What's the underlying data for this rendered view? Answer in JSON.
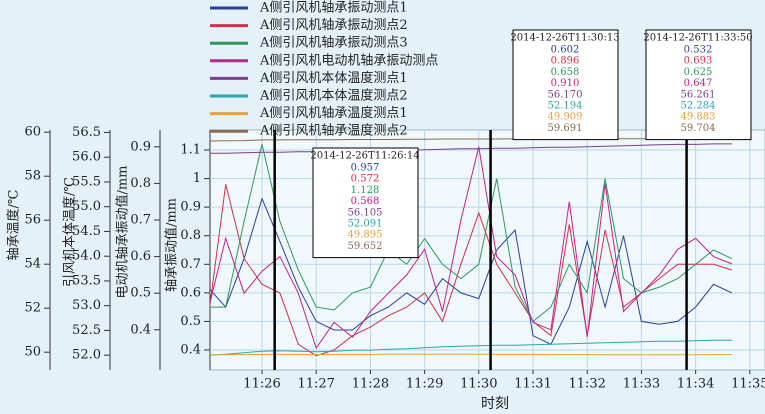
{
  "chart_data": {
    "type": "line",
    "x_label": "时刻",
    "x": [
      685.0,
      685.33,
      685.67,
      686.0,
      686.33,
      686.67,
      687.0,
      687.33,
      687.67,
      688.0,
      688.33,
      688.67,
      689.0,
      689.33,
      689.67,
      690.0,
      690.33,
      690.67,
      691.0,
      691.33,
      691.67,
      692.0,
      692.33,
      692.67,
      693.0,
      693.33,
      693.67,
      694.0,
      694.33,
      694.67
    ],
    "xlim": [
      685.04,
      695.28
    ],
    "xticks": [
      {
        "value": 686,
        "label": "11:26"
      },
      {
        "value": 687,
        "label": "11:27"
      },
      {
        "value": 688,
        "label": "11:28"
      },
      {
        "value": 689,
        "label": "11:29"
      },
      {
        "value": 690,
        "label": "11:30"
      },
      {
        "value": 691,
        "label": "11:31"
      },
      {
        "value": 692,
        "label": "11:32"
      },
      {
        "value": 693,
        "label": "11:33"
      },
      {
        "value": 694,
        "label": "11:34"
      },
      {
        "value": 695,
        "label": "11:35"
      }
    ],
    "grid": true,
    "axes": [
      {
        "label": "轴承温度/℃",
        "ylim": [
          49.19,
          60.1
        ],
        "yticks": [
          50,
          52,
          54,
          56,
          58,
          60
        ]
      },
      {
        "label": "引风机本体温度/℃",
        "ylim": [
          51.7,
          56.55
        ],
        "yticks": [
          {
            "value": 52,
            "label": "52.0"
          },
          52.5,
          {
            "value": 53,
            "label": "53.0"
          },
          53.5,
          {
            "value": 54,
            "label": "54.0"
          },
          54.5,
          {
            "value": 55,
            "label": "55.0"
          },
          55.5,
          {
            "value": 56,
            "label": "56.0"
          },
          56.5
        ]
      },
      {
        "label": "电动机轴承振动值/mm",
        "ylim": [
          0.29,
          0.946
        ],
        "yticks": [
          0.4,
          0.5,
          0.6,
          0.7,
          0.8,
          0.9
        ]
      },
      {
        "label": "轴承振动值/mm",
        "ylim": [
          0.33,
          1.17
        ],
        "yticks": [
          0.4,
          0.5,
          0.6,
          0.7,
          0.8,
          0.9,
          1.0,
          1.1
        ]
      }
    ],
    "series": [
      {
        "name": "A侧引风机轴承振动测点1",
        "color": "#2a3f9a",
        "axis": 3,
        "values": [
          0.62,
          0.55,
          0.72,
          0.93,
          0.78,
          0.62,
          0.5,
          0.47,
          0.47,
          0.52,
          0.55,
          0.6,
          0.56,
          0.65,
          0.6,
          0.58,
          0.75,
          0.82,
          0.45,
          0.42,
          0.55,
          0.78,
          0.55,
          0.8,
          0.5,
          0.49,
          0.5,
          0.55,
          0.63,
          0.6
        ]
      },
      {
        "name": "A侧引风机轴承振动测点2",
        "color": "#d0314a",
        "axis": 3,
        "values": [
          0.5,
          0.98,
          0.72,
          0.63,
          0.6,
          0.42,
          0.38,
          0.4,
          0.45,
          0.48,
          0.52,
          0.55,
          0.6,
          0.5,
          0.7,
          0.88,
          0.7,
          0.6,
          0.5,
          0.45,
          0.84,
          0.45,
          0.82,
          0.55,
          0.6,
          0.65,
          0.7,
          0.7,
          0.7,
          0.68
        ]
      },
      {
        "name": "A侧引风机轴承振动测点3",
        "color": "#2e9a5a",
        "axis": 3,
        "values": [
          0.55,
          0.55,
          0.85,
          1.12,
          0.85,
          0.68,
          0.55,
          0.54,
          0.6,
          0.62,
          0.75,
          0.7,
          0.79,
          0.7,
          0.65,
          0.7,
          1.0,
          0.62,
          0.5,
          0.55,
          0.7,
          0.6,
          1.0,
          0.65,
          0.6,
          0.62,
          0.65,
          0.7,
          0.75,
          0.72
        ]
      },
      {
        "name": "A侧引风机电动机轴承振动测点",
        "color": "#c4208e",
        "axis": 2,
        "values": [
          0.45,
          0.65,
          0.5,
          0.56,
          0.6,
          0.5,
          0.35,
          0.42,
          0.38,
          0.45,
          0.5,
          0.55,
          0.62,
          0.45,
          0.7,
          0.9,
          0.6,
          0.55,
          0.42,
          0.4,
          0.75,
          0.38,
          0.8,
          0.45,
          0.5,
          0.55,
          0.62,
          0.65,
          0.6,
          0.58
        ]
      },
      {
        "name": "A侧引风机本体温度测点1",
        "color": "#7b3e8e",
        "axis": 1,
        "values": [
          56.08,
          56.08,
          56.09,
          56.1,
          56.1,
          56.11,
          56.11,
          56.12,
          56.12,
          56.13,
          56.13,
          56.14,
          56.15,
          56.16,
          56.17,
          56.17,
          56.18,
          56.18,
          56.19,
          56.2,
          56.2,
          56.21,
          56.22,
          56.23,
          56.24,
          56.25,
          56.26,
          56.26,
          56.27,
          56.27
        ]
      },
      {
        "name": "A侧引风机本体温度测点2",
        "color": "#2aa6b0",
        "axis": 1,
        "values": [
          52.0,
          52.02,
          52.05,
          52.08,
          52.09,
          52.08,
          52.07,
          52.08,
          52.1,
          52.1,
          52.12,
          52.13,
          52.15,
          52.17,
          52.18,
          52.19,
          52.2,
          52.2,
          52.21,
          52.22,
          52.23,
          52.24,
          52.25,
          52.26,
          52.27,
          52.28,
          52.28,
          52.29,
          52.3,
          52.3
        ]
      },
      {
        "name": "A侧引风机轴承温度测点1",
        "color": "#e8a040",
        "axis": 0,
        "values": [
          49.88,
          49.88,
          49.89,
          49.9,
          49.9,
          49.9,
          49.89,
          49.9,
          49.9,
          49.9,
          49.91,
          49.91,
          49.91,
          49.91,
          49.91,
          49.91,
          49.9,
          49.9,
          49.9,
          49.89,
          49.89,
          49.89,
          49.88,
          49.88,
          49.88,
          49.88,
          49.88,
          49.88,
          49.89,
          49.89
        ]
      },
      {
        "name": "A侧引风机轴承温度测点2",
        "color": "#8a6a50",
        "axis": 0,
        "values": [
          59.6,
          59.61,
          59.62,
          59.65,
          59.65,
          59.66,
          59.66,
          59.66,
          59.67,
          59.67,
          59.67,
          59.68,
          59.68,
          59.69,
          59.69,
          59.69,
          59.69,
          59.7,
          59.7,
          59.7,
          59.7,
          59.7,
          59.7,
          59.7,
          59.7,
          59.7,
          59.7,
          59.71,
          59.71,
          59.72
        ]
      }
    ],
    "tooltips": [
      {
        "time": "2014-12-26T11:26:14",
        "values": [
          "0.957",
          "0.572",
          "1.128",
          "0.568",
          "56.105",
          "52.091",
          "49.895",
          "59.652"
        ]
      },
      {
        "time": "2014-12-26T11:30:13",
        "values": [
          "0.602",
          "0.896",
          "0.658",
          "0.910",
          "56.170",
          "52.194",
          "49.909",
          "59.691"
        ]
      },
      {
        "time": "2014-12-26T11:33:50",
        "values": [
          "0.532",
          "0.693",
          "0.625",
          "0.647",
          "56.261",
          "52.284",
          "49.883",
          "59.704"
        ]
      }
    ]
  }
}
